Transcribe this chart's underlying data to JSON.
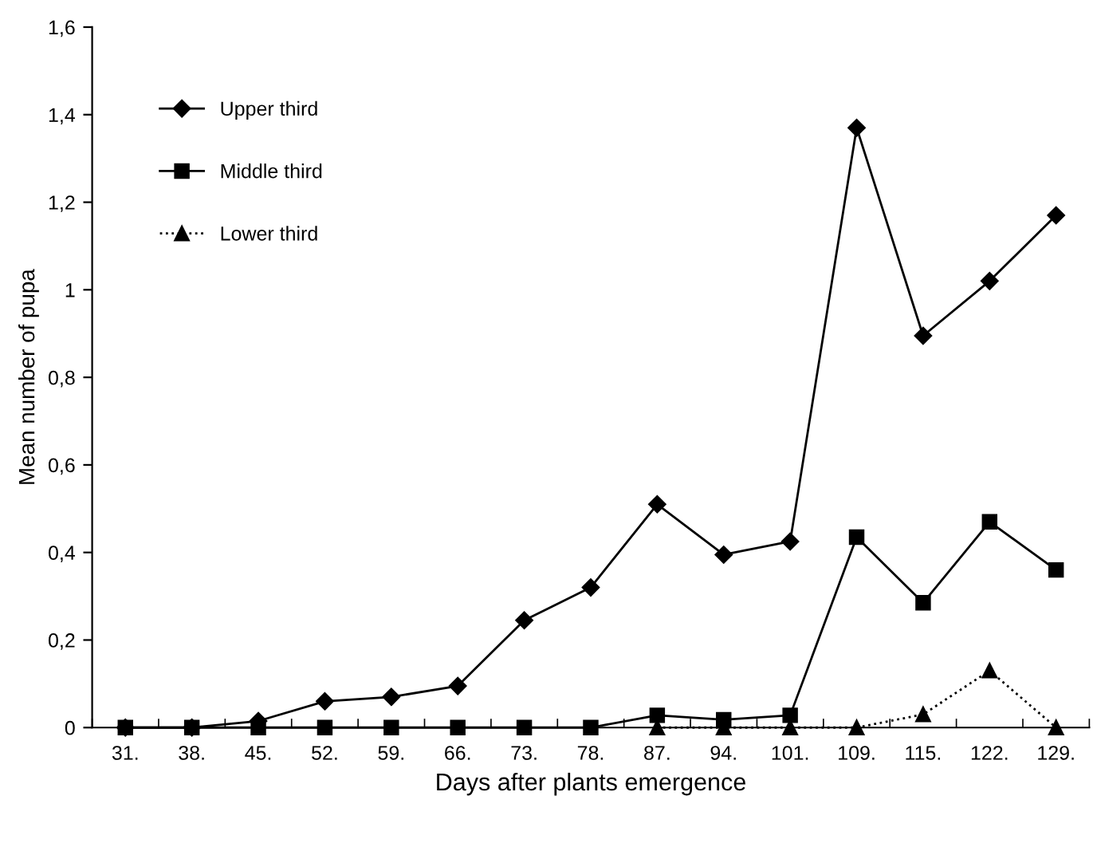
{
  "chart_data": {
    "type": "line",
    "xlabel": "Days after plants emergence",
    "ylabel": "Mean number of pupa",
    "categories": [
      "31.",
      "38.",
      "45.",
      "52.",
      "59.",
      "66.",
      "73.",
      "78.",
      "87.",
      "94.",
      "101.",
      "109.",
      "115.",
      "122.",
      "129."
    ],
    "series": [
      {
        "name": "Upper third",
        "color": "#000000",
        "marker": "diamond",
        "line_style": "solid",
        "values": [
          0,
          0,
          0.015,
          0.06,
          0.07,
          0.095,
          0.245,
          0.32,
          0.51,
          0.395,
          0.425,
          1.37,
          0.895,
          1.02,
          1.17
        ]
      },
      {
        "name": "Middle third",
        "color": "#000000",
        "marker": "square",
        "line_style": "solid",
        "values": [
          0,
          0,
          0,
          0,
          0,
          0,
          0,
          0,
          0.028,
          0.018,
          0.028,
          0.435,
          0.285,
          0.47,
          0.36
        ]
      },
      {
        "name": "Lower third",
        "color": "#000000",
        "marker": "triangle",
        "line_style": "dotted",
        "values": [
          null,
          null,
          null,
          null,
          null,
          null,
          null,
          null,
          0,
          0,
          0,
          0,
          0.03,
          0.13,
          0
        ]
      }
    ],
    "ylim": [
      0,
      1.6
    ],
    "yticks": [
      0,
      {
        "value": 0.2,
        "label": "0,2"
      },
      {
        "value": 0.4,
        "label": "0,4"
      },
      {
        "value": 0.6,
        "label": "0,6"
      },
      {
        "value": 0.8,
        "label": "0,8"
      },
      1,
      {
        "value": 1.2,
        "label": "1,2"
      },
      {
        "value": 1.4,
        "label": "1,4"
      },
      {
        "value": 1.6,
        "label": "1,6"
      }
    ],
    "grid": false,
    "legend": "top left"
  }
}
